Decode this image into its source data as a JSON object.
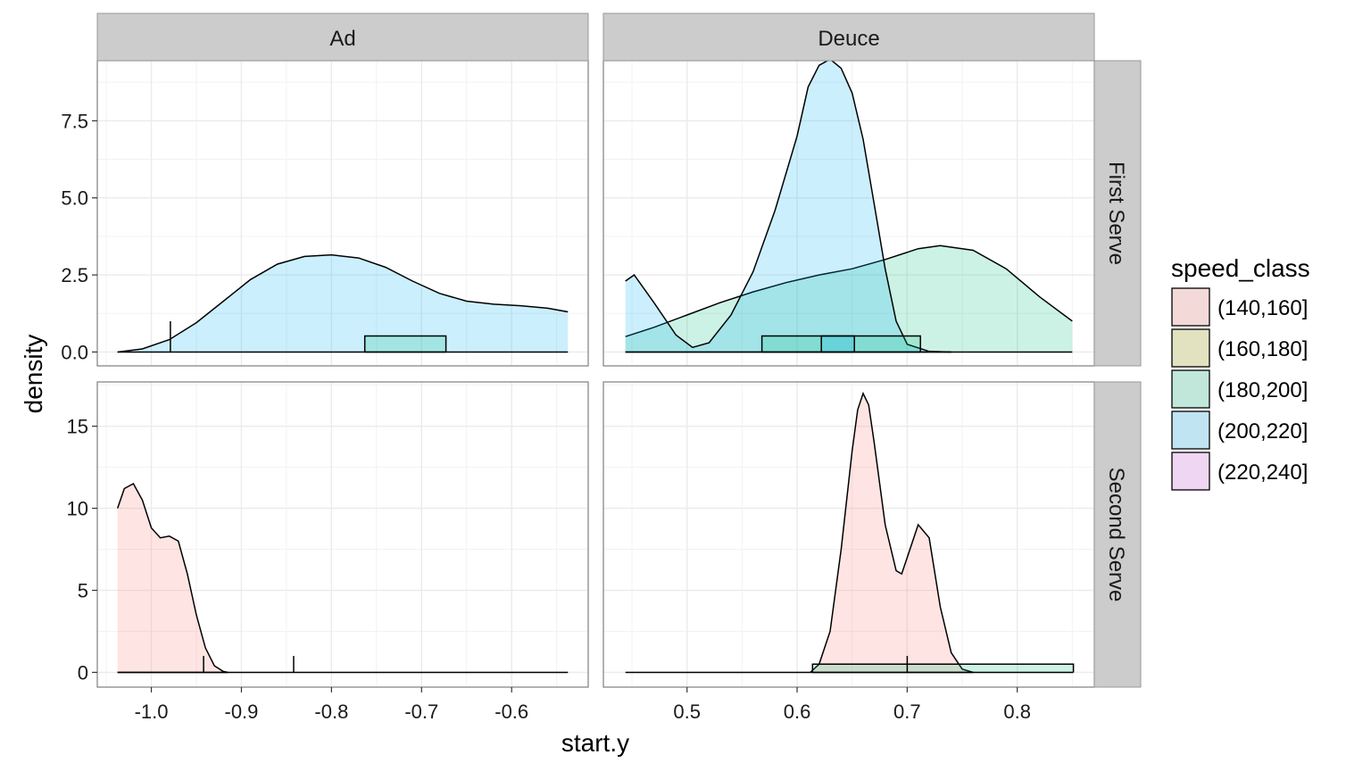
{
  "chart_data": {
    "type": "area",
    "xlabel": "start.y",
    "ylabel": "density",
    "grid": true,
    "legend": {
      "title": "speed_class",
      "placement": "right",
      "entries": [
        {
          "label": "(140,160]",
          "color": "#F8766D"
        },
        {
          "label": "(160,180]",
          "color": "#A3A500"
        },
        {
          "label": "(180,200]",
          "color": "#00BF7D"
        },
        {
          "label": "(200,220]",
          "color": "#00B0F6"
        },
        {
          "label": "(220,240]",
          "color": "#E76BF3"
        }
      ]
    },
    "fill_alpha": 0.2,
    "columns": [
      {
        "label": "Ad",
        "xlim": [
          -1.06,
          -0.515
        ],
        "ticks": [
          -1.0,
          -0.9,
          -0.8,
          -0.7,
          -0.6
        ],
        "tick_labels": [
          "-1.0",
          "-0.9",
          "-0.8",
          "-0.7",
          "-0.6"
        ]
      },
      {
        "label": "Deuce",
        "xlim": [
          0.424,
          0.87
        ],
        "ticks": [
          0.5,
          0.6,
          0.7,
          0.8
        ],
        "tick_labels": [
          "0.5",
          "0.6",
          "0.7",
          "0.8"
        ]
      }
    ],
    "rows": [
      {
        "label": "First Serve",
        "ylim": [
          -0.45,
          9.45
        ],
        "ticks": [
          0,
          2.5,
          5,
          7.5
        ],
        "tick_labels": [
          "0.0",
          "2.5",
          "5.0",
          "7.5"
        ]
      },
      {
        "label": "Second Serve",
        "ylim": [
          -0.9,
          17.7
        ],
        "ticks": [
          0,
          5,
          10,
          15
        ],
        "tick_labels": [
          "0",
          "5",
          "10",
          "15"
        ]
      }
    ],
    "panels": [
      {
        "row": 0,
        "col": 0,
        "series": [
          {
            "class": "(200,220]",
            "x": [
              -1.0375,
              -1.01,
              -0.98,
              -0.95,
              -0.92,
              -0.89,
              -0.86,
              -0.83,
              -0.8,
              -0.77,
              -0.74,
              -0.71,
              -0.68,
              -0.65,
              -0.62,
              -0.59,
              -0.56,
              -0.5375
            ],
            "y": [
              0.0,
              0.1,
              0.4,
              0.95,
              1.65,
              2.35,
              2.85,
              3.1,
              3.15,
              3.05,
              2.75,
              2.3,
              1.9,
              1.65,
              1.55,
              1.5,
              1.42,
              1.3
            ]
          },
          {
            "class": "(180,200]",
            "x": [
              -0.9788,
              -0.9788
            ],
            "y": [
              0.0,
              1.0
            ]
          },
          {
            "class": "(180,200]",
            "x": [
              -0.763,
              -0.763,
              -0.673,
              -0.673
            ],
            "y": [
              0.0,
              0.52,
              0.52,
              0.0
            ]
          }
        ]
      },
      {
        "row": 0,
        "col": 1,
        "series": [
          {
            "class": "(180,200]",
            "x": [
              0.444,
              0.47,
              0.5,
              0.53,
              0.56,
              0.59,
              0.62,
              0.65,
              0.68,
              0.71,
              0.73,
              0.76,
              0.79,
              0.82,
              0.85
            ],
            "y": [
              0.5,
              0.8,
              1.2,
              1.6,
              1.95,
              2.25,
              2.5,
              2.7,
              3.0,
              3.35,
              3.45,
              3.3,
              2.7,
              1.8,
              1.0
            ]
          },
          {
            "class": "(200,220]",
            "x": [
              0.444,
              0.452,
              0.47,
              0.49,
              0.505,
              0.52,
              0.54,
              0.56,
              0.58,
              0.6,
              0.61,
              0.62,
              0.63,
              0.64,
              0.65,
              0.66,
              0.67,
              0.68,
              0.69,
              0.7,
              0.72,
              0.74
            ],
            "y": [
              2.3,
              2.5,
              1.6,
              0.55,
              0.15,
              0.3,
              1.2,
              2.6,
              4.6,
              7.0,
              8.6,
              9.3,
              9.5,
              9.2,
              8.4,
              6.9,
              4.8,
              2.7,
              1.0,
              0.25,
              0.02,
              0.0
            ]
          },
          {
            "class": "(180,200]",
            "x": [
              0.568,
              0.568,
              0.712,
              0.712
            ],
            "y": [
              0.0,
              0.52,
              0.52,
              0.0
            ]
          },
          {
            "class": "(200,220]",
            "x": [
              0.622,
              0.622,
              0.652,
              0.652
            ],
            "y": [
              0.0,
              0.52,
              0.52,
              0.0
            ]
          }
        ]
      },
      {
        "row": 1,
        "col": 0,
        "series": [
          {
            "class": "(140,160]",
            "x": [
              -1.0375,
              -1.03,
              -1.02,
              -1.01,
              -1.0,
              -0.99,
              -0.98,
              -0.97,
              -0.96,
              -0.95,
              -0.94,
              -0.93,
              -0.92,
              -0.915
            ],
            "y": [
              10.0,
              11.2,
              11.5,
              10.5,
              8.8,
              8.2,
              8.3,
              8.0,
              6.0,
              3.5,
              1.5,
              0.4,
              0.05,
              0.0
            ]
          },
          {
            "class": "(140,160]",
            "x": [
              -1.0375,
              -0.5375
            ],
            "y": [
              0.0,
              0.0
            ]
          },
          {
            "class": "(140,160]",
            "x": [
              -0.942,
              -0.942
            ],
            "y": [
              0.0,
              1.0
            ]
          },
          {
            "class": "(140,160]",
            "x": [
              -0.842,
              -0.842
            ],
            "y": [
              0.0,
              1.0
            ]
          }
        ]
      },
      {
        "row": 1,
        "col": 1,
        "series": [
          {
            "class": "(140,160]",
            "x": [
              0.444,
              0.612
            ],
            "y": [
              0.0,
              0.0
            ]
          },
          {
            "class": "(140,160]",
            "x": [
              0.612,
              0.62,
              0.63,
              0.64,
              0.65,
              0.655,
              0.66,
              0.665,
              0.67,
              0.68,
              0.69,
              0.695,
              0.7,
              0.71,
              0.72,
              0.73,
              0.74,
              0.75,
              0.76
            ],
            "y": [
              0.0,
              0.5,
              2.5,
              7.5,
              13.5,
              16.0,
              17.0,
              16.3,
              14.0,
              9.0,
              6.2,
              6.0,
              7.0,
              9.0,
              8.2,
              4.0,
              1.2,
              0.2,
              0.0
            ]
          },
          {
            "class": "(180,200]",
            "x": [
              0.614,
              0.614,
              0.851,
              0.851
            ],
            "y": [
              0.0,
              0.5,
              0.5,
              0.0
            ]
          },
          {
            "class": "(140,160]",
            "x": [
              0.7,
              0.7
            ],
            "y": [
              0.0,
              1.0
            ]
          }
        ]
      }
    ]
  }
}
